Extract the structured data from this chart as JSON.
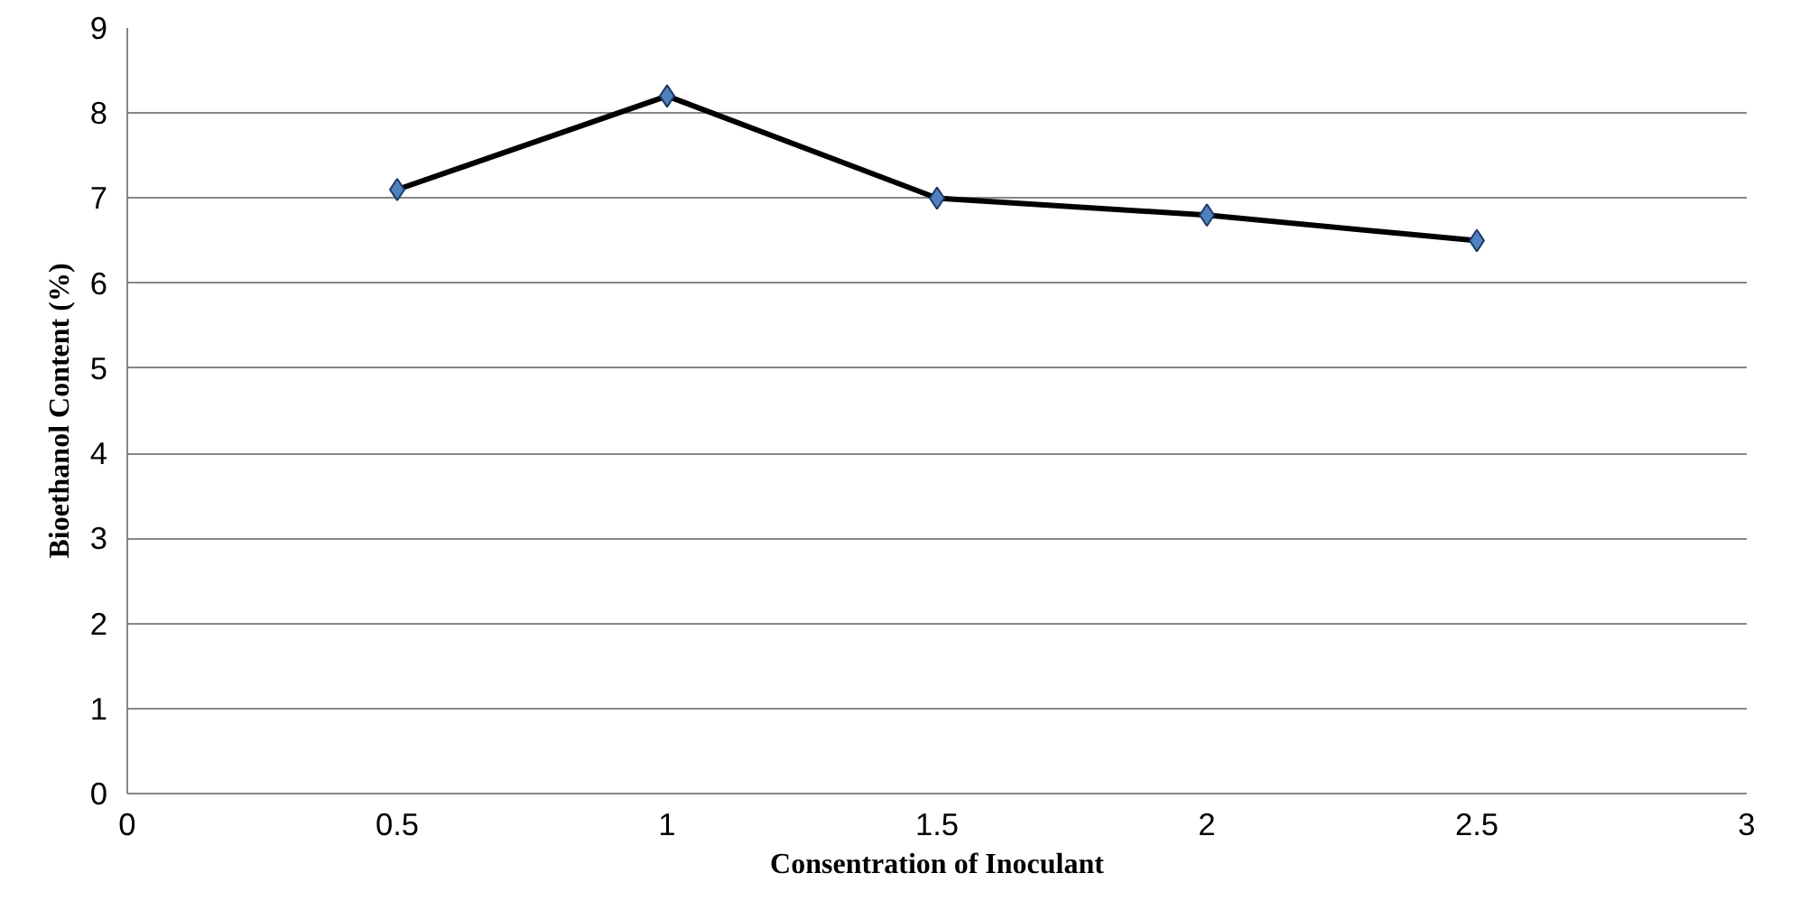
{
  "chart_data": {
    "type": "line",
    "xlabel": "Consentration of Inoculant",
    "ylabel": "Bioethanol Content (%)",
    "x": [
      0.5,
      1,
      1.5,
      2,
      2.5
    ],
    "series": [
      {
        "color": "#4f81bd",
        "values": [
          7.1,
          8.2,
          7.0,
          6.8,
          6.5
        ]
      }
    ],
    "xlim": [
      0,
      3
    ],
    "xticks": [
      0,
      0.5,
      1,
      1.5,
      2,
      2.5,
      3
    ],
    "ylim": [
      0,
      9
    ],
    "yticks": [
      0,
      1,
      2,
      3,
      4,
      5,
      6,
      7,
      8,
      9
    ],
    "grid": "y",
    "marker": "diamond",
    "line_style": "solid"
  }
}
